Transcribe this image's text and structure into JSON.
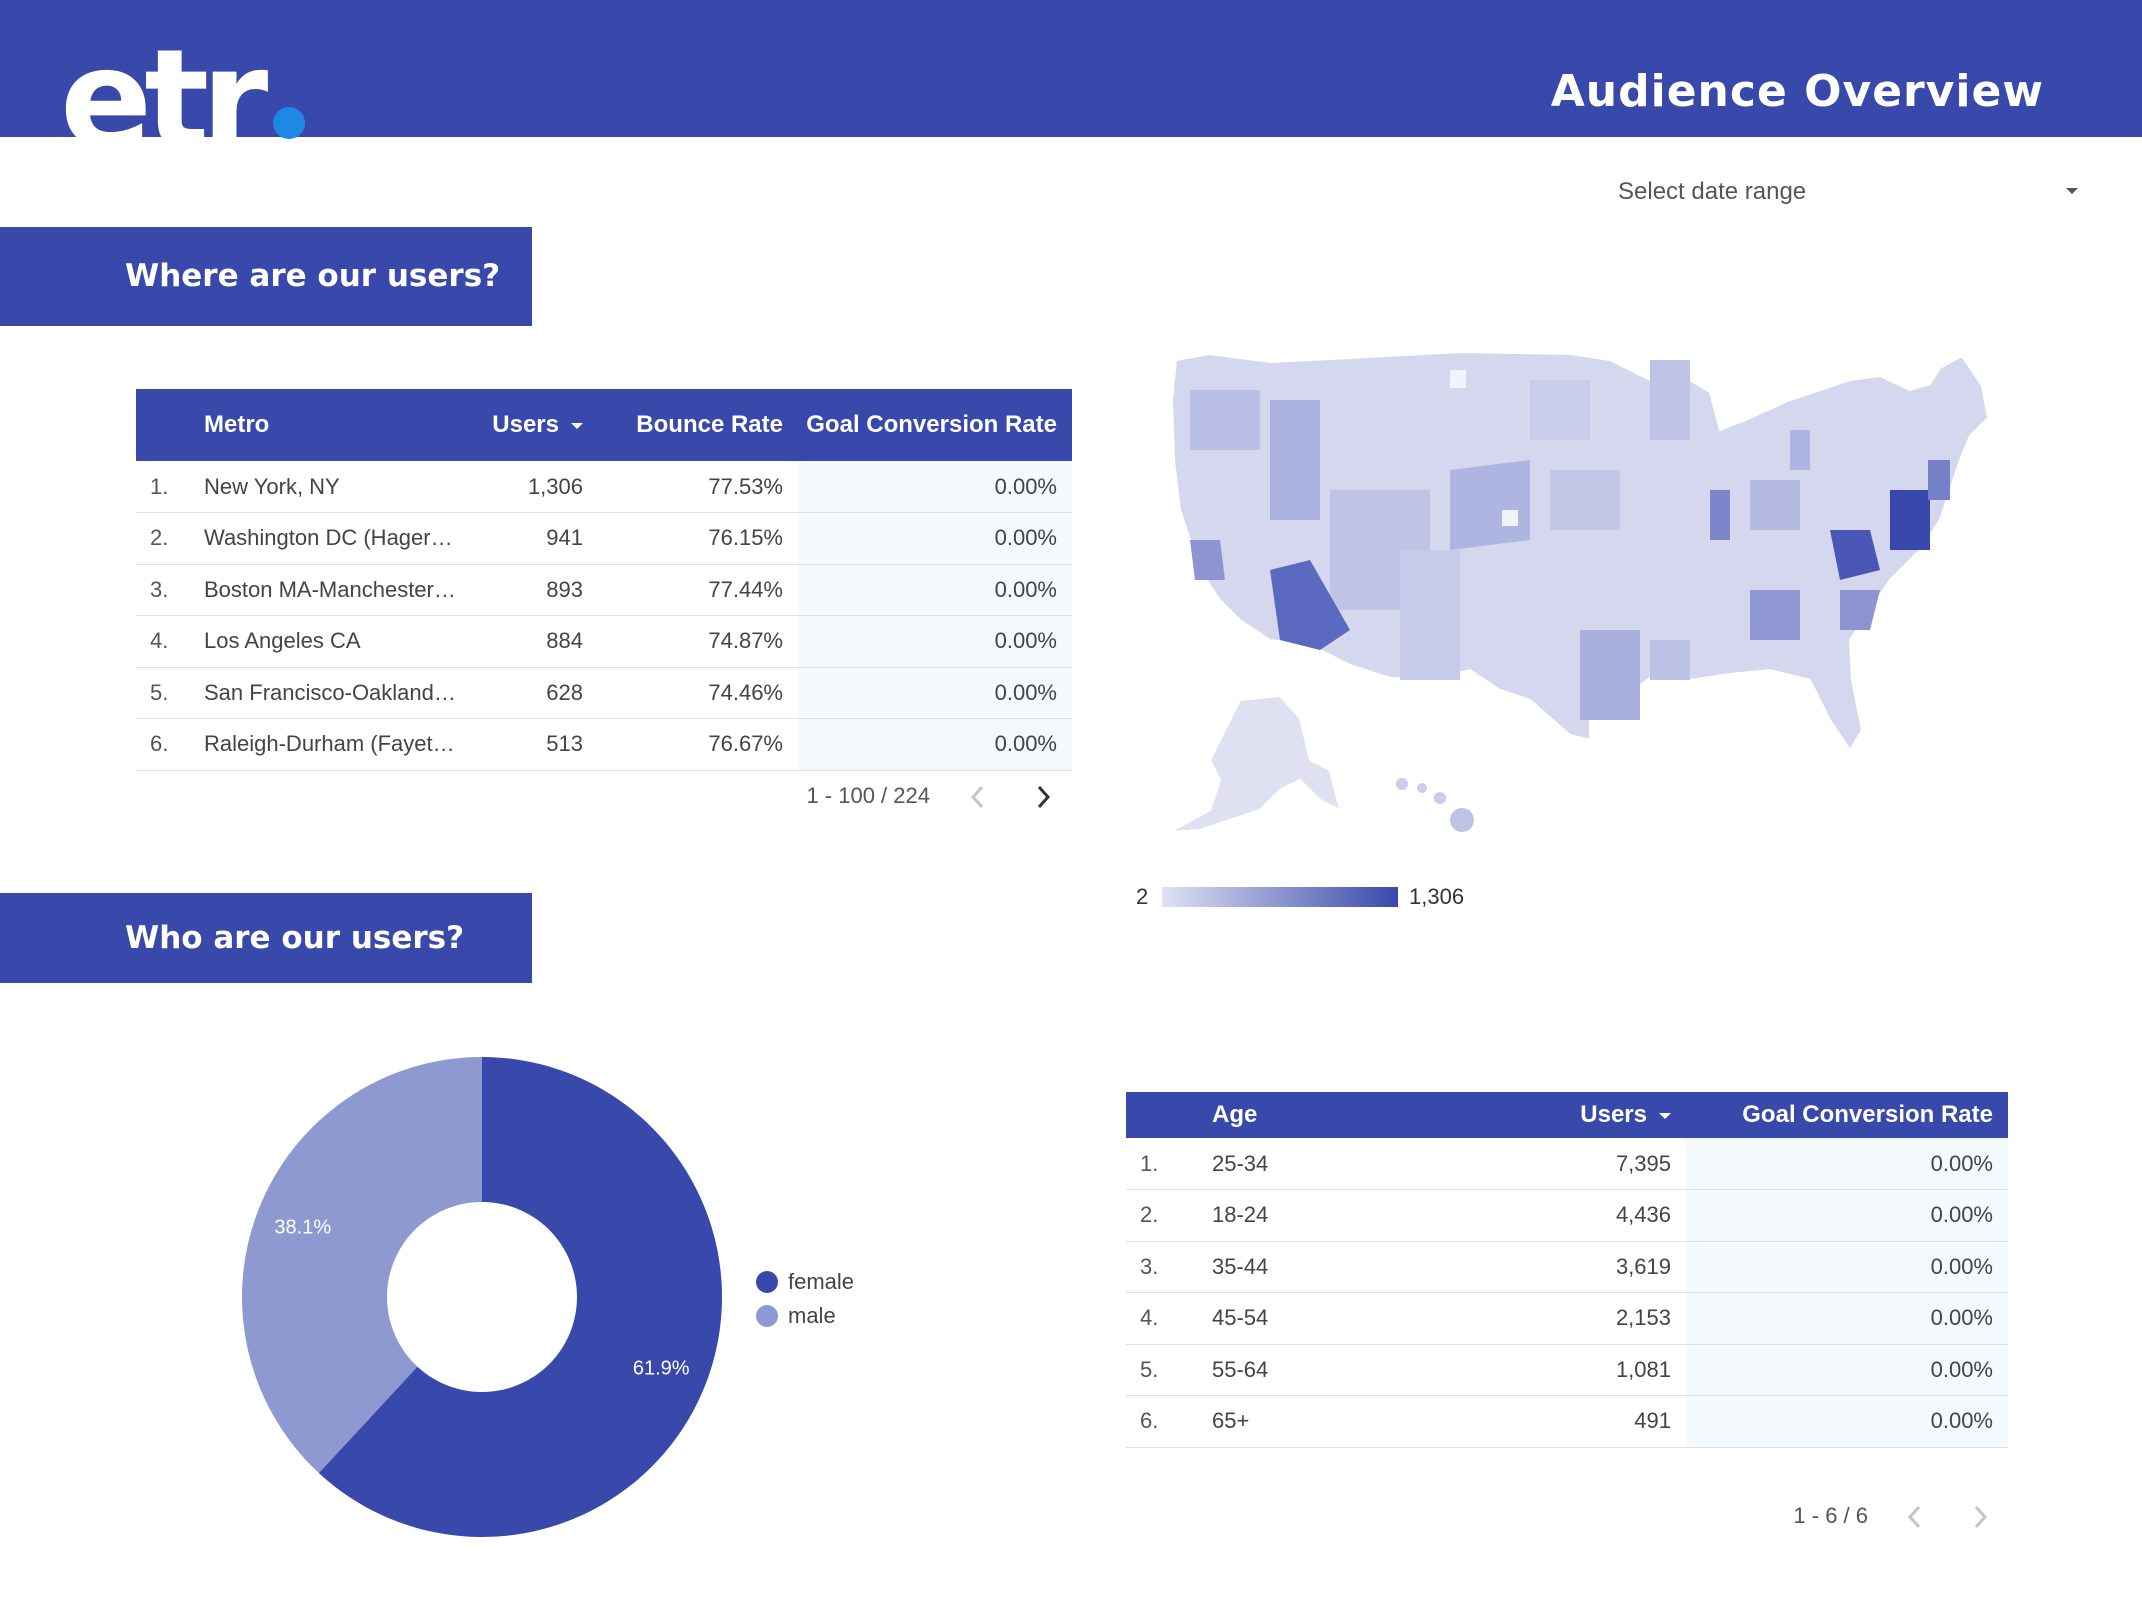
{
  "header": {
    "logo_text": "etr",
    "title": "Audience Overview"
  },
  "date_range": {
    "label": "Select date range"
  },
  "sections": {
    "where": "Where are our users?",
    "who": "Who are our users?"
  },
  "metro_table": {
    "columns": [
      "Metro",
      "Users",
      "Bounce Rate",
      "Goal Conversion Rate"
    ],
    "rows": [
      {
        "idx": "1.",
        "metro": "New York, NY",
        "users": "1,306",
        "bounce": "77.53%",
        "goal": "0.00%"
      },
      {
        "idx": "2.",
        "metro": "Washington DC (Hagersto...",
        "users": "941",
        "bounce": "76.15%",
        "goal": "0.00%"
      },
      {
        "idx": "3.",
        "metro": "Boston MA-Manchester NH",
        "users": "893",
        "bounce": "77.44%",
        "goal": "0.00%"
      },
      {
        "idx": "4.",
        "metro": "Los Angeles CA",
        "users": "884",
        "bounce": "74.87%",
        "goal": "0.00%"
      },
      {
        "idx": "5.",
        "metro": "San Francisco-Oakland-Sa...",
        "users": "628",
        "bounce": "74.46%",
        "goal": "0.00%"
      },
      {
        "idx": "6.",
        "metro": "Raleigh-Durham (Fayettev...",
        "users": "513",
        "bounce": "76.67%",
        "goal": "0.00%"
      }
    ],
    "pagination": "1 - 100 / 224"
  },
  "map": {
    "legend_min": "2",
    "legend_max": "1,306",
    "color_low": "#e0e2f3",
    "color_high": "#3949ab"
  },
  "gender_chart": {
    "type": "pie",
    "categories": [
      "female",
      "male"
    ],
    "values": [
      61.9,
      38.1
    ],
    "labels": [
      "61.9%",
      "38.1%"
    ],
    "colors": [
      "#3949ab",
      "#8e99d2"
    ]
  },
  "age_table": {
    "columns": [
      "Age",
      "Users",
      "Goal Conversion Rate"
    ],
    "rows": [
      {
        "idx": "1.",
        "age": "25-34",
        "users": "7,395",
        "goal": "0.00%"
      },
      {
        "idx": "2.",
        "age": "18-24",
        "users": "4,436",
        "goal": "0.00%"
      },
      {
        "idx": "3.",
        "age": "35-44",
        "users": "3,619",
        "goal": "0.00%"
      },
      {
        "idx": "4.",
        "age": "45-54",
        "users": "2,153",
        "goal": "0.00%"
      },
      {
        "idx": "5.",
        "age": "55-64",
        "users": "1,081",
        "goal": "0.00%"
      },
      {
        "idx": "6.",
        "age": "65+",
        "users": "491",
        "goal": "0.00%"
      }
    ],
    "pagination": "1 - 6 / 6"
  }
}
